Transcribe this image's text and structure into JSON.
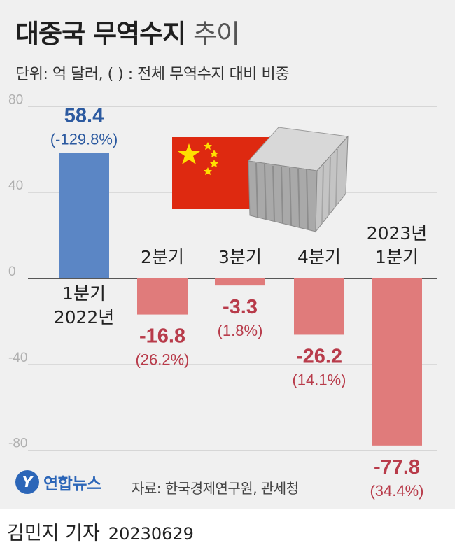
{
  "header": {
    "title_bold": "대중국 무역수지",
    "title_light": "추이",
    "subtitle": "단위: 억 달러, ( ) : 전체 무역수지 대비 비중"
  },
  "footer": {
    "logo_text": "연합뉴스",
    "source": "자료: 한국경제연구원, 관세청",
    "author": "김민지 기자",
    "date": "20230629"
  },
  "colors": {
    "positive": "#5b86c5",
    "negative": "#e07b7b",
    "positive_label": "#2c5aa0",
    "negative_label": "#b83b4a",
    "flag_red": "#de2910",
    "flag_star": "#ffde00"
  },
  "illustration": [
    "china-flag-icon",
    "shipping-container-icon"
  ],
  "chart_data": {
    "type": "bar",
    "categories": [
      [
        "1분기",
        "2022년"
      ],
      [
        "2분기"
      ],
      [
        "3분기"
      ],
      [
        "4분기"
      ],
      [
        "2023년",
        "1분기"
      ]
    ],
    "values": [
      58.4,
      -16.8,
      -3.3,
      -26.2,
      -77.8
    ],
    "value_labels": [
      "58.4",
      "-16.8",
      "-3.3",
      "-26.2",
      "-77.8"
    ],
    "share_labels": [
      "(-129.8%)",
      "(26.2%)",
      "(1.8%)",
      "(14.1%)",
      "(34.4%)"
    ],
    "yticks": [
      80,
      40,
      0,
      -40,
      -80
    ],
    "ylim": [
      -80,
      80
    ],
    "grid": true
  }
}
